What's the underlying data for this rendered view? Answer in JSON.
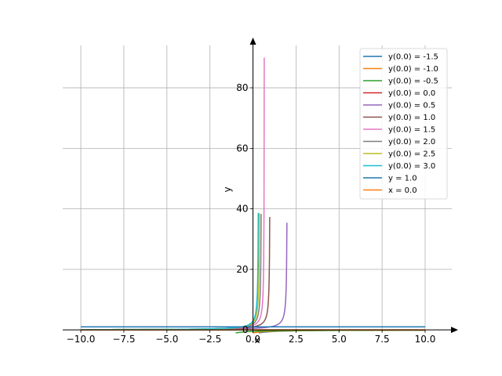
{
  "chart_data": {
    "type": "line",
    "xlabel": "x",
    "ylabel": "y",
    "xlim": [
      -11.05,
      11.55
    ],
    "ylim": [
      -1,
      94
    ],
    "xticks": [
      -10.0,
      -7.5,
      -5.0,
      -2.5,
      0.0,
      2.5,
      5.0,
      7.5,
      10.0
    ],
    "xtick_labels": [
      "−10.0",
      "−7.5",
      "−5.0",
      "−2.5",
      "0.0",
      "2.5",
      "5.0",
      "7.5",
      "10.0"
    ],
    "yticks": [
      0,
      20,
      40,
      60,
      80
    ],
    "ytick_labels": [
      "0",
      "20",
      "40",
      "60",
      "80"
    ],
    "grid": true,
    "legend_position": "top-right",
    "series": [
      {
        "name": "y(0.0) = -1.5",
        "color": "#1f77b4",
        "c": -1.5
      },
      {
        "name": "y(0.0) = -1.0",
        "color": "#ff7f0e",
        "c": -1.0
      },
      {
        "name": "y(0.0) = -0.5",
        "color": "#2ca02c",
        "c": -0.5
      },
      {
        "name": "y(0.0) = 0.0",
        "color": "#d62728",
        "c": 0.0
      },
      {
        "name": "y(0.0) = 0.5",
        "color": "#9467bd",
        "c": 0.5
      },
      {
        "name": "y(0.0) = 1.0",
        "color": "#8c564b",
        "c": 1.0
      },
      {
        "name": "y(0.0) = 1.5",
        "color": "#e377c2",
        "c": 1.5
      },
      {
        "name": "y(0.0) = 2.0",
        "color": "#7f7f7f",
        "c": 2.0
      },
      {
        "name": "y(0.0) = 2.5",
        "color": "#bcbd22",
        "c": 2.5
      },
      {
        "name": "y(0.0) = 3.0",
        "color": "#17becf",
        "c": 3.0
      },
      {
        "name": "y = 1.0",
        "color": "#1f77b4",
        "constant_y": 1.0
      },
      {
        "name": "x = 0.0",
        "color": "#ff7f0e",
        "constant_y": 0.0
      }
    ]
  }
}
